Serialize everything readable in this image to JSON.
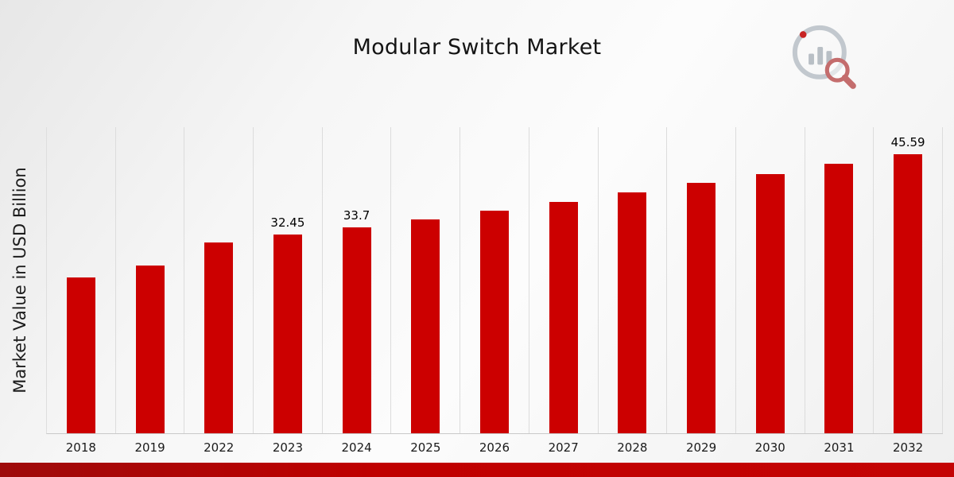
{
  "page": {
    "title": "Modular Switch Market"
  },
  "chart_data": {
    "type": "bar",
    "title": "Modular Switch Market",
    "xlabel": "",
    "ylabel": "Market Value in USD Billion",
    "ylim": [
      0,
      50
    ],
    "grid": "vertical-column-dividers",
    "legend": "none",
    "bar_color": "#CC0000",
    "categories": [
      "2018",
      "2019",
      "2022",
      "2023",
      "2024",
      "2025",
      "2026",
      "2027",
      "2028",
      "2029",
      "2030",
      "2031",
      "2032"
    ],
    "values": [
      25.4,
      27.4,
      31.2,
      32.45,
      33.7,
      34.9,
      36.4,
      37.8,
      39.4,
      40.9,
      42.3,
      44.0,
      45.59
    ],
    "data_labels": [
      "",
      "",
      "",
      "32.45",
      "33.7",
      "",
      "",
      "",
      "",
      "",
      "",
      "",
      "45.59"
    ]
  },
  "branding": {
    "logo_icon": "bar-chart-magnifier-logo"
  },
  "colors": {
    "bar": "#CC0000",
    "bottom_band": "#C00000",
    "gridline": "#DCDCDC",
    "background_light": "#F6F6F6",
    "background_shade": "#E7E7E7"
  }
}
